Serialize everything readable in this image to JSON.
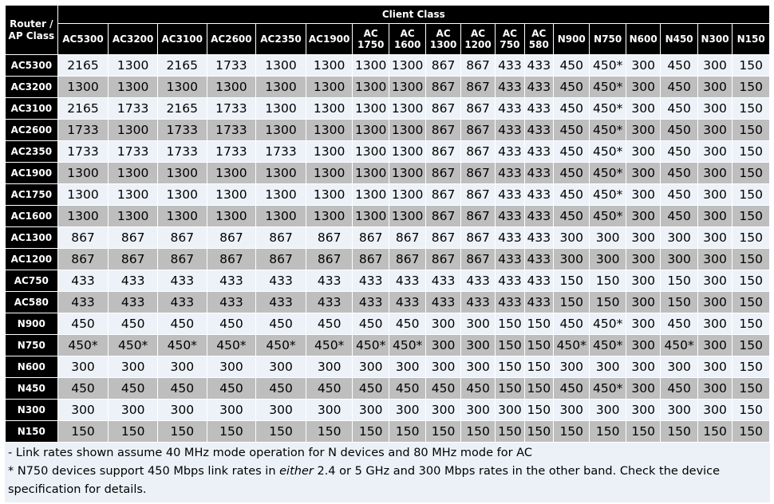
{
  "table": {
    "corner_label": "Router / AP Class",
    "group_header": "Client Class",
    "columns": [
      "AC5300",
      "AC3200",
      "AC3100",
      "AC2600",
      "AC2350",
      "AC1900",
      "AC 1750",
      "AC 1600",
      "AC 1300",
      "AC 1200",
      "AC 750",
      "AC 580",
      "N900",
      "N750",
      "N600",
      "N450",
      "N300",
      "N150"
    ],
    "rows": [
      {
        "label": "AC5300",
        "values": [
          "2165",
          "1300",
          "2165",
          "1733",
          "1300",
          "1300",
          "1300",
          "1300",
          "867",
          "867",
          "433",
          "433",
          "450",
          "450*",
          "300",
          "450",
          "300",
          "150"
        ]
      },
      {
        "label": "AC3200",
        "values": [
          "1300",
          "1300",
          "1300",
          "1300",
          "1300",
          "1300",
          "1300",
          "1300",
          "867",
          "867",
          "433",
          "433",
          "450",
          "450*",
          "300",
          "450",
          "300",
          "150"
        ]
      },
      {
        "label": "AC3100",
        "values": [
          "2165",
          "1733",
          "2165",
          "1733",
          "1300",
          "1300",
          "1300",
          "1300",
          "867",
          "867",
          "433",
          "433",
          "450",
          "450*",
          "300",
          "450",
          "300",
          "150"
        ]
      },
      {
        "label": "AC2600",
        "values": [
          "1733",
          "1300",
          "1733",
          "1733",
          "1300",
          "1300",
          "1300",
          "1300",
          "867",
          "867",
          "433",
          "433",
          "450",
          "450*",
          "300",
          "450",
          "300",
          "150"
        ]
      },
      {
        "label": "AC2350",
        "values": [
          "1733",
          "1733",
          "1733",
          "1733",
          "1733",
          "1300",
          "1300",
          "1300",
          "867",
          "867",
          "433",
          "433",
          "450",
          "450*",
          "300",
          "450",
          "300",
          "150"
        ]
      },
      {
        "label": "AC1900",
        "values": [
          "1300",
          "1300",
          "1300",
          "1300",
          "1300",
          "1300",
          "1300",
          "1300",
          "867",
          "867",
          "433",
          "433",
          "450",
          "450*",
          "300",
          "450",
          "300",
          "150"
        ]
      },
      {
        "label": "AC1750",
        "values": [
          "1300",
          "1300",
          "1300",
          "1300",
          "1300",
          "1300",
          "1300",
          "1300",
          "867",
          "867",
          "433",
          "433",
          "450",
          "450*",
          "300",
          "450",
          "300",
          "150"
        ]
      },
      {
        "label": "AC1600",
        "values": [
          "1300",
          "1300",
          "1300",
          "1300",
          "1300",
          "1300",
          "1300",
          "1300",
          "867",
          "867",
          "433",
          "433",
          "450",
          "450*",
          "300",
          "450",
          "300",
          "150"
        ]
      },
      {
        "label": "AC1300",
        "values": [
          "867",
          "867",
          "867",
          "867",
          "867",
          "867",
          "867",
          "867",
          "867",
          "867",
          "433",
          "433",
          "300",
          "300",
          "300",
          "300",
          "300",
          "150"
        ]
      },
      {
        "label": "AC1200",
        "values": [
          "867",
          "867",
          "867",
          "867",
          "867",
          "867",
          "867",
          "867",
          "867",
          "867",
          "433",
          "433",
          "300",
          "300",
          "300",
          "300",
          "300",
          "150"
        ]
      },
      {
        "label": "AC750",
        "values": [
          "433",
          "433",
          "433",
          "433",
          "433",
          "433",
          "433",
          "433",
          "433",
          "433",
          "433",
          "433",
          "150",
          "150",
          "300",
          "150",
          "300",
          "150"
        ]
      },
      {
        "label": "AC580",
        "values": [
          "433",
          "433",
          "433",
          "433",
          "433",
          "433",
          "433",
          "433",
          "433",
          "433",
          "433",
          "433",
          "150",
          "150",
          "300",
          "150",
          "300",
          "150"
        ]
      },
      {
        "label": "N900",
        "values": [
          "450",
          "450",
          "450",
          "450",
          "450",
          "450",
          "450",
          "450",
          "300",
          "300",
          "150",
          "150",
          "450",
          "450*",
          "300",
          "450",
          "300",
          "150"
        ]
      },
      {
        "label": "N750",
        "values": [
          "450*",
          "450*",
          "450*",
          "450*",
          "450*",
          "450*",
          "450*",
          "450*",
          "300",
          "300",
          "150",
          "150",
          "450*",
          "450*",
          "300",
          "450*",
          "300",
          "150"
        ]
      },
      {
        "label": "N600",
        "values": [
          "300",
          "300",
          "300",
          "300",
          "300",
          "300",
          "300",
          "300",
          "300",
          "300",
          "150",
          "150",
          "300",
          "300",
          "300",
          "300",
          "300",
          "150"
        ]
      },
      {
        "label": "N450",
        "values": [
          "450",
          "450",
          "450",
          "450",
          "450",
          "450",
          "450",
          "450",
          "450",
          "450",
          "150",
          "150",
          "450",
          "450*",
          "300",
          "450",
          "300",
          "150"
        ]
      },
      {
        "label": "N300",
        "values": [
          "300",
          "300",
          "300",
          "300",
          "300",
          "300",
          "300",
          "300",
          "300",
          "300",
          "300",
          "150",
          "300",
          "300",
          "300",
          "300",
          "300",
          "150"
        ]
      },
      {
        "label": "N150",
        "values": [
          "150",
          "150",
          "150",
          "150",
          "150",
          "150",
          "150",
          "150",
          "150",
          "150",
          "150",
          "150",
          "150",
          "150",
          "150",
          "150",
          "150",
          "150"
        ]
      }
    ]
  },
  "notes": {
    "line1": "- Link rates shown assume 40 MHz mode operation for N devices and 80 MHz mode for AC",
    "line2_before": "* N750 devices support 450 Mbps link rates in ",
    "line2_em": "either",
    "line2_after": " 2.4 or 5 GHz and 300 Mbps rates in the other band. Check the device specification for details."
  }
}
